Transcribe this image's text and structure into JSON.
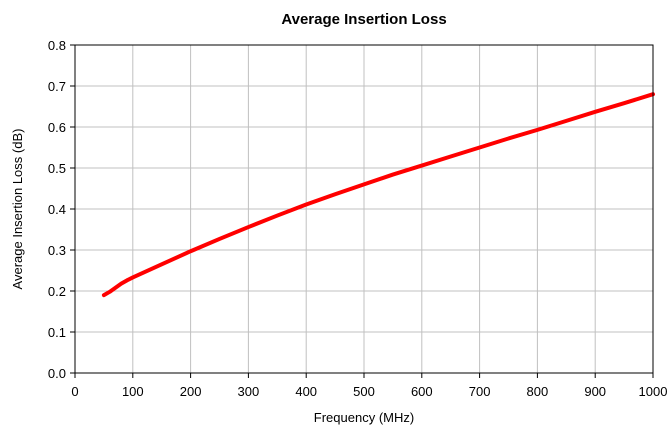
{
  "chart_data": {
    "type": "line",
    "title": "Average Insertion Loss",
    "xlabel": "Frequency (MHz)",
    "ylabel": "Average Insertion Loss (dB)",
    "xlim": [
      0,
      1000
    ],
    "ylim": [
      0.0,
      0.8
    ],
    "xticks": [
      "0",
      "100",
      "200",
      "300",
      "400",
      "500",
      "600",
      "700",
      "800",
      "900",
      "1000"
    ],
    "yticks": [
      "0.0",
      "0.1",
      "0.2",
      "0.3",
      "0.4",
      "0.5",
      "0.6",
      "0.7",
      "0.8"
    ],
    "grid": true,
    "legend": "none",
    "series": [
      {
        "color": "#ff0000",
        "x": [
          50,
          60,
          70,
          80,
          90,
          100,
          150,
          200,
          250,
          300,
          350,
          400,
          450,
          500,
          550,
          600,
          650,
          700,
          750,
          800,
          850,
          900,
          950,
          1000
        ],
        "y": [
          0.19,
          0.198,
          0.208,
          0.218,
          0.226,
          0.233,
          0.265,
          0.297,
          0.327,
          0.356,
          0.384,
          0.411,
          0.436,
          0.46,
          0.484,
          0.506,
          0.528,
          0.55,
          0.572,
          0.593,
          0.615,
          0.637,
          0.658,
          0.68
        ]
      }
    ]
  }
}
